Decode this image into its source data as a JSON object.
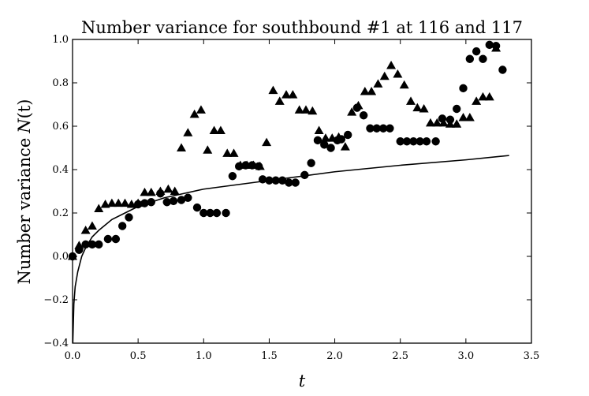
{
  "chart_data": {
    "type": "scatter",
    "title": "Number variance for southbound #1 at 116 and 117",
    "xlabel": "t",
    "ylabel": "Number variance N(t)",
    "ylabel_text": "Number variance",
    "ylabel_var": "N",
    "ylabel_arg": "(t)",
    "xlim": [
      0.0,
      3.5
    ],
    "ylim": [
      -0.4,
      1.0
    ],
    "xticks": [
      "0.0",
      "0.5",
      "1.0",
      "1.5",
      "2.0",
      "2.5",
      "3.0",
      "3.5"
    ],
    "yticks": [
      "−0.4",
      "−0.2",
      "0.0",
      "0.2",
      "0.4",
      "0.6",
      "0.8",
      "1.0"
    ],
    "grid": false,
    "legend": "none",
    "series": [
      {
        "marker": "circle",
        "color": "#000000",
        "points": [
          [
            0.0,
            0.0
          ],
          [
            0.05,
            0.03
          ],
          [
            0.1,
            0.055
          ],
          [
            0.15,
            0.055
          ],
          [
            0.2,
            0.055
          ],
          [
            0.27,
            0.08
          ],
          [
            0.33,
            0.08
          ],
          [
            0.38,
            0.14
          ],
          [
            0.43,
            0.18
          ],
          [
            0.5,
            0.24
          ],
          [
            0.55,
            0.245
          ],
          [
            0.6,
            0.25
          ],
          [
            0.67,
            0.29
          ],
          [
            0.72,
            0.25
          ],
          [
            0.77,
            0.255
          ],
          [
            0.83,
            0.26
          ],
          [
            0.88,
            0.27
          ],
          [
            0.95,
            0.225
          ],
          [
            1.0,
            0.2
          ],
          [
            1.05,
            0.2
          ],
          [
            1.1,
            0.2
          ],
          [
            1.17,
            0.2
          ],
          [
            1.22,
            0.37
          ],
          [
            1.27,
            0.415
          ],
          [
            1.32,
            0.42
          ],
          [
            1.37,
            0.42
          ],
          [
            1.42,
            0.415
          ],
          [
            1.45,
            0.355
          ],
          [
            1.5,
            0.35
          ],
          [
            1.55,
            0.35
          ],
          [
            1.6,
            0.35
          ],
          [
            1.65,
            0.34
          ],
          [
            1.7,
            0.34
          ],
          [
            1.77,
            0.375
          ],
          [
            1.82,
            0.43
          ],
          [
            1.87,
            0.535
          ],
          [
            1.92,
            0.515
          ],
          [
            1.97,
            0.5
          ],
          [
            2.02,
            0.535
          ],
          [
            2.05,
            0.54
          ],
          [
            2.1,
            0.56
          ],
          [
            2.17,
            0.685
          ],
          [
            2.22,
            0.65
          ],
          [
            2.27,
            0.59
          ],
          [
            2.32,
            0.59
          ],
          [
            2.37,
            0.59
          ],
          [
            2.42,
            0.59
          ],
          [
            2.5,
            0.53
          ],
          [
            2.55,
            0.53
          ],
          [
            2.6,
            0.53
          ],
          [
            2.65,
            0.53
          ],
          [
            2.7,
            0.53
          ],
          [
            2.77,
            0.53
          ],
          [
            2.82,
            0.635
          ],
          [
            2.88,
            0.63
          ],
          [
            2.93,
            0.68
          ],
          [
            2.98,
            0.775
          ],
          [
            3.03,
            0.91
          ],
          [
            3.08,
            0.945
          ],
          [
            3.13,
            0.91
          ],
          [
            3.18,
            0.975
          ],
          [
            3.23,
            0.97
          ],
          [
            3.28,
            0.86
          ]
        ]
      },
      {
        "marker": "triangle",
        "color": "#000000",
        "points": [
          [
            0.0,
            0.0
          ],
          [
            0.05,
            0.05
          ],
          [
            0.1,
            0.12
          ],
          [
            0.15,
            0.14
          ],
          [
            0.2,
            0.22
          ],
          [
            0.25,
            0.24
          ],
          [
            0.3,
            0.245
          ],
          [
            0.35,
            0.245
          ],
          [
            0.4,
            0.245
          ],
          [
            0.45,
            0.24
          ],
          [
            0.5,
            0.245
          ],
          [
            0.55,
            0.295
          ],
          [
            0.6,
            0.295
          ],
          [
            0.67,
            0.3
          ],
          [
            0.73,
            0.31
          ],
          [
            0.78,
            0.3
          ],
          [
            0.83,
            0.5
          ],
          [
            0.88,
            0.57
          ],
          [
            0.93,
            0.655
          ],
          [
            0.98,
            0.675
          ],
          [
            1.03,
            0.49
          ],
          [
            1.08,
            0.58
          ],
          [
            1.13,
            0.58
          ],
          [
            1.18,
            0.475
          ],
          [
            1.23,
            0.475
          ],
          [
            1.28,
            0.42
          ],
          [
            1.33,
            0.42
          ],
          [
            1.38,
            0.42
          ],
          [
            1.43,
            0.415
          ],
          [
            1.48,
            0.525
          ],
          [
            1.53,
            0.765
          ],
          [
            1.58,
            0.715
          ],
          [
            1.63,
            0.745
          ],
          [
            1.68,
            0.745
          ],
          [
            1.73,
            0.675
          ],
          [
            1.78,
            0.675
          ],
          [
            1.83,
            0.67
          ],
          [
            1.88,
            0.58
          ],
          [
            1.93,
            0.545
          ],
          [
            1.98,
            0.545
          ],
          [
            2.03,
            0.55
          ],
          [
            2.08,
            0.505
          ],
          [
            2.13,
            0.665
          ],
          [
            2.18,
            0.695
          ],
          [
            2.23,
            0.76
          ],
          [
            2.28,
            0.76
          ],
          [
            2.33,
            0.795
          ],
          [
            2.38,
            0.83
          ],
          [
            2.43,
            0.88
          ],
          [
            2.48,
            0.84
          ],
          [
            2.53,
            0.79
          ],
          [
            2.58,
            0.715
          ],
          [
            2.63,
            0.685
          ],
          [
            2.68,
            0.68
          ],
          [
            2.73,
            0.615
          ],
          [
            2.78,
            0.615
          ],
          [
            2.83,
            0.615
          ],
          [
            2.88,
            0.61
          ],
          [
            2.93,
            0.61
          ],
          [
            2.98,
            0.64
          ],
          [
            3.03,
            0.64
          ],
          [
            3.08,
            0.715
          ],
          [
            3.13,
            0.735
          ],
          [
            3.18,
            0.735
          ],
          [
            3.23,
            0.96
          ]
        ]
      },
      {
        "type": "line",
        "color": "#000000",
        "curve": "log",
        "points": [
          [
            0.002,
            -0.4
          ],
          [
            0.01,
            -0.22
          ],
          [
            0.02,
            -0.14
          ],
          [
            0.04,
            -0.07
          ],
          [
            0.07,
            0.0
          ],
          [
            0.1,
            0.04
          ],
          [
            0.15,
            0.09
          ],
          [
            0.2,
            0.12
          ],
          [
            0.3,
            0.17
          ],
          [
            0.4,
            0.2
          ],
          [
            0.5,
            0.23
          ],
          [
            0.7,
            0.27
          ],
          [
            1.0,
            0.31
          ],
          [
            1.5,
            0.35
          ],
          [
            2.0,
            0.39
          ],
          [
            2.5,
            0.42
          ],
          [
            3.0,
            0.445
          ],
          [
            3.33,
            0.465
          ]
        ]
      }
    ]
  }
}
